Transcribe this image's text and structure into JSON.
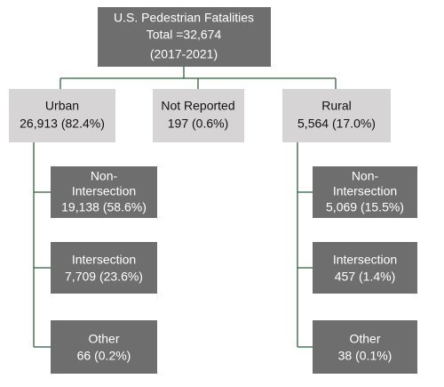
{
  "root": {
    "lines": [
      "U.S. Pedestrian Fatalities",
      "Total =32,674",
      "(2017-2021)"
    ]
  },
  "groups": [
    {
      "lines": [
        "Urban",
        "26,913 (82.4%)"
      ],
      "children": [
        {
          "lines": [
            "Non-",
            "Intersection",
            "19,138 (58.6%)"
          ]
        },
        {
          "lines": [
            "Intersection",
            "7,709 (23.6%)"
          ]
        },
        {
          "lines": [
            "Other",
            "66 (0.2%)"
          ]
        }
      ]
    },
    {
      "lines": [
        "Not Reported",
        "197 (0.6%)"
      ]
    },
    {
      "lines": [
        "Rural",
        "5,564 (17.0%)"
      ],
      "children": [
        {
          "lines": [
            "Non-",
            "Intersection",
            "5,069 (15.5%)"
          ]
        },
        {
          "lines": [
            "Intersection",
            "457 (1.4%)"
          ]
        },
        {
          "lines": [
            "Other",
            "38 (0.1%)"
          ]
        }
      ]
    }
  ]
}
